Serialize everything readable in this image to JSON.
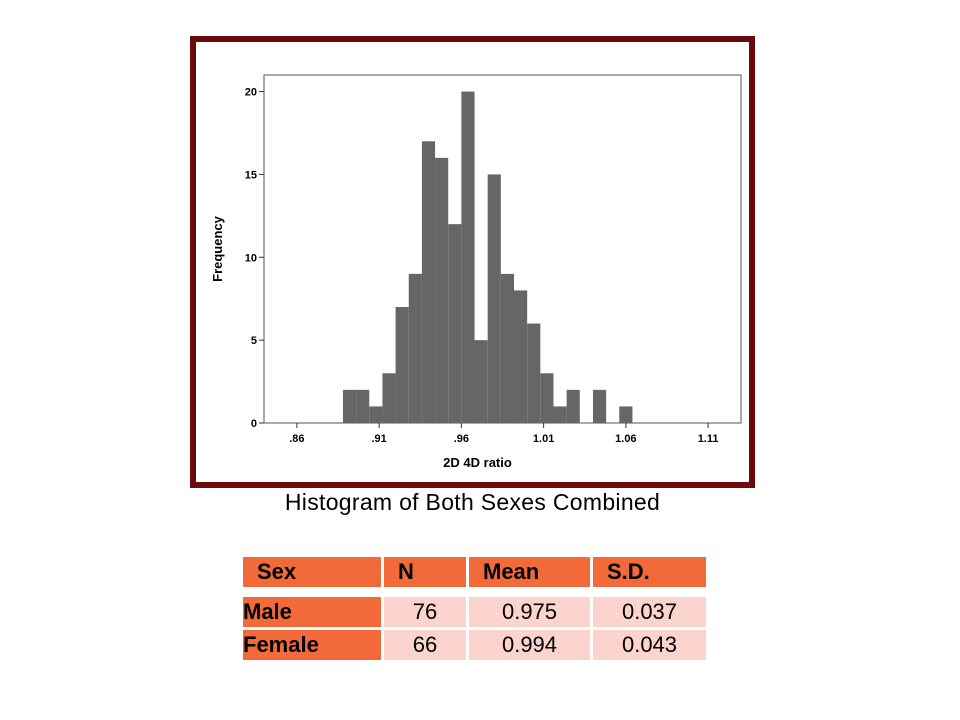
{
  "chart_data": {
    "type": "bar",
    "title": "",
    "xlabel": "2D 4D ratio",
    "ylabel": "Frequency",
    "bin_width": 0.008,
    "xlim": [
      0.84,
      1.13
    ],
    "ylim": [
      0,
      21
    ],
    "x_ticks": [
      {
        "value": 0.86,
        "label": ".86"
      },
      {
        "value": 0.91,
        "label": ".91"
      },
      {
        "value": 0.96,
        "label": ".96"
      },
      {
        "value": 1.01,
        "label": "1.01"
      },
      {
        "value": 1.06,
        "label": "1.06"
      },
      {
        "value": 1.11,
        "label": "1.11"
      }
    ],
    "y_ticks": [
      0,
      5,
      10,
      15,
      20
    ],
    "bins": [
      {
        "x": 0.888,
        "count": 2
      },
      {
        "x": 0.896,
        "count": 2
      },
      {
        "x": 0.904,
        "count": 1
      },
      {
        "x": 0.912,
        "count": 3
      },
      {
        "x": 0.92,
        "count": 7
      },
      {
        "x": 0.928,
        "count": 9
      },
      {
        "x": 0.936,
        "count": 17
      },
      {
        "x": 0.944,
        "count": 16
      },
      {
        "x": 0.952,
        "count": 12
      },
      {
        "x": 0.96,
        "count": 20
      },
      {
        "x": 0.968,
        "count": 5
      },
      {
        "x": 0.976,
        "count": 15
      },
      {
        "x": 0.984,
        "count": 9
      },
      {
        "x": 0.992,
        "count": 8
      },
      {
        "x": 1.0,
        "count": 6
      },
      {
        "x": 1.008,
        "count": 3
      },
      {
        "x": 1.016,
        "count": 1
      },
      {
        "x": 1.024,
        "count": 2
      },
      {
        "x": 1.04,
        "count": 2
      },
      {
        "x": 1.056,
        "count": 1
      }
    ],
    "bar_color": "#666666"
  },
  "caption": "Histogram of Both Sexes Combined",
  "table": {
    "headers": [
      "Sex",
      "N",
      "Mean",
      "S.D."
    ],
    "rows": [
      [
        "Male",
        "76",
        "0.975",
        "0.037"
      ],
      [
        "Female",
        "66",
        "0.994",
        "0.043"
      ]
    ]
  },
  "colors": {
    "frame": "#6b0a0a",
    "header_bg": "#f26a3a",
    "cell_bg": "#fbd5cd"
  }
}
